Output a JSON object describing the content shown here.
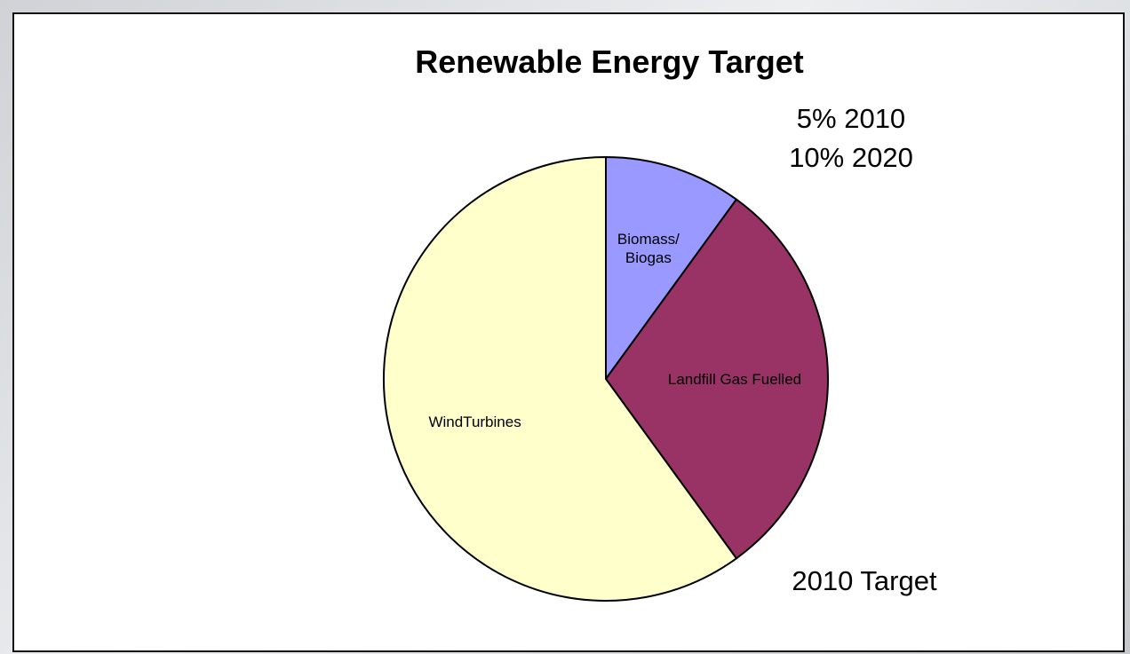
{
  "chart_data": {
    "type": "pie",
    "title": "Renewable Energy Target",
    "annotations": [
      "5% 2010",
      "10% 2020"
    ],
    "footnote": "2010 Target",
    "legend": "none",
    "slices": [
      {
        "label": [
          "Biomass/",
          "Biogas"
        ],
        "value": 10,
        "color": "#9999ff"
      },
      {
        "label": [
          "Landfill Gas Fuelled"
        ],
        "value": 30,
        "color": "#993366"
      },
      {
        "label": [
          "WindTurbines"
        ],
        "value": 60,
        "color": "#ffffcc"
      }
    ]
  }
}
